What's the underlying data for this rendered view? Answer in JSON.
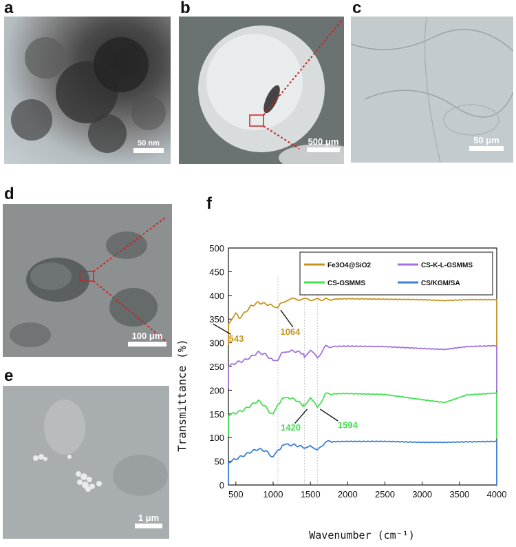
{
  "panels": {
    "a": {
      "label": "a",
      "scale_text": "50 nm"
    },
    "b": {
      "label": "b",
      "scale_text": "500 μm"
    },
    "c": {
      "label": "c",
      "scale_text": "50 μm"
    },
    "d": {
      "label": "d",
      "scale_text": "100 μm"
    },
    "e": {
      "label": "e",
      "scale_text": "1 μm"
    },
    "f": {
      "label": "f"
    }
  },
  "chart_data": {
    "type": "line",
    "xlabel": "Wavenumber (cm⁻¹)",
    "ylabel": "Transmittance (%)",
    "xlim": [
      400,
      4000
    ],
    "ylim": [
      0,
      500
    ],
    "xticks": [
      500,
      1000,
      1500,
      2000,
      2500,
      3000,
      3500,
      4000
    ],
    "yticks": [
      0,
      50,
      100,
      150,
      200,
      250,
      300,
      350,
      400,
      450,
      500
    ],
    "legend": [
      "Fe3O4@SiO2",
      "CS-K-L-GSMMS",
      "CS-GSMMS",
      "CS/KGM/SA"
    ],
    "legend_placement": "top-right",
    "series": [
      {
        "name": "Fe3O4@SiO2",
        "color": "#c8931e",
        "x": [
          400,
          450,
          500,
          543,
          600,
          700,
          800,
          900,
          1000,
          1064,
          1120,
          1200,
          1400,
          1600,
          2000,
          2500,
          3000,
          3300,
          3600,
          4000
        ],
        "y": [
          340,
          350,
          362,
          352,
          360,
          377,
          385,
          382,
          378,
          376,
          385,
          392,
          392,
          391,
          393,
          392,
          391,
          389,
          391,
          391
        ]
      },
      {
        "name": "CS-K-L-GSMMS",
        "color": "#a070e0",
        "x": [
          400,
          500,
          600,
          700,
          800,
          900,
          1000,
          1064,
          1120,
          1200,
          1300,
          1400,
          1420,
          1500,
          1594,
          1700,
          2000,
          2500,
          3000,
          3300,
          3600,
          4000
        ],
        "y": [
          250,
          258,
          262,
          270,
          280,
          275,
          262,
          265,
          278,
          283,
          282,
          278,
          272,
          284,
          268,
          292,
          293,
          292,
          288,
          286,
          292,
          294
        ]
      },
      {
        "name": "CS-GSMMS",
        "color": "#44e050",
        "x": [
          400,
          500,
          600,
          700,
          800,
          900,
          950,
          1000,
          1064,
          1120,
          1200,
          1300,
          1400,
          1420,
          1500,
          1594,
          1700,
          2000,
          2500,
          3000,
          3300,
          3600,
          4000
        ],
        "y": [
          148,
          152,
          158,
          168,
          178,
          165,
          150,
          148,
          170,
          180,
          185,
          180,
          168,
          168,
          186,
          162,
          192,
          193,
          191,
          180,
          174,
          190,
          194
        ]
      },
      {
        "name": "CS/KGM/SA",
        "color": "#3a7fd8",
        "x": [
          400,
          500,
          600,
          700,
          800,
          900,
          1000,
          1064,
          1120,
          1200,
          1300,
          1400,
          1420,
          1500,
          1594,
          1700,
          2000,
          2500,
          3000,
          3300,
          3600,
          4000
        ],
        "y": [
          48,
          55,
          62,
          70,
          76,
          72,
          58,
          72,
          82,
          85,
          84,
          80,
          76,
          85,
          72,
          91,
          92,
          92,
          90,
          90,
          91,
          92
        ]
      }
    ],
    "reference_lines": [
      1064,
      1420,
      1594
    ],
    "annotations": [
      {
        "text": "543",
        "color": "#c8931e"
      },
      {
        "text": "1064",
        "color": "#c8931e"
      },
      {
        "text": "1420",
        "color": "#44e050"
      },
      {
        "text": "1594",
        "color": "#44e050"
      }
    ]
  }
}
